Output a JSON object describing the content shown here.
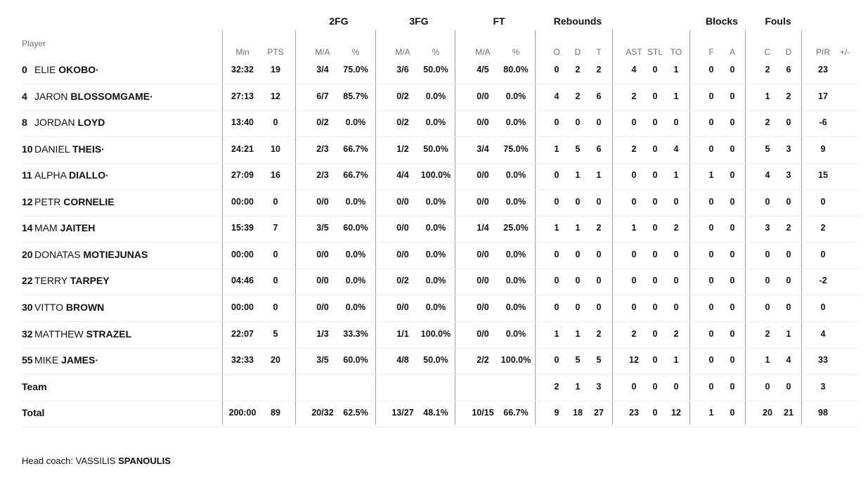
{
  "header": {
    "player_label": "Player",
    "groups": [
      {
        "key": "fg2",
        "label": "2FG"
      },
      {
        "key": "fg3",
        "label": "3FG"
      },
      {
        "key": "ft",
        "label": "FT"
      },
      {
        "key": "reb",
        "label": "Rebounds"
      },
      {
        "key": "blk",
        "label": "Blocks"
      },
      {
        "key": "fouls",
        "label": "Fouls"
      }
    ],
    "columns": [
      "Min",
      "PTS",
      "M/A",
      "%",
      "M/A",
      "%",
      "M/A",
      "%",
      "O",
      "D",
      "T",
      "AST",
      "STL",
      "TO",
      "F",
      "A",
      "C",
      "D",
      "PIR",
      "+/-"
    ]
  },
  "rows": [
    {
      "number": "0",
      "first": "ELIE",
      "last": "OKOBO·",
      "stats": [
        "32:32",
        "19",
        "3/4",
        "75.0%",
        "3/6",
        "50.0%",
        "4/5",
        "80.0%",
        "0",
        "2",
        "2",
        "4",
        "0",
        "1",
        "0",
        "0",
        "2",
        "6",
        "23",
        ""
      ]
    },
    {
      "number": "4",
      "first": "JARON",
      "last": "BLOSSOMGAME·",
      "stats": [
        "27:13",
        "12",
        "6/7",
        "85.7%",
        "0/2",
        "0.0%",
        "0/0",
        "0.0%",
        "4",
        "2",
        "6",
        "2",
        "0",
        "1",
        "0",
        "0",
        "1",
        "2",
        "17",
        ""
      ]
    },
    {
      "number": "8",
      "first": "JORDAN",
      "last": "LOYD",
      "stats": [
        "13:40",
        "0",
        "0/2",
        "0.0%",
        "0/2",
        "0.0%",
        "0/0",
        "0.0%",
        "0",
        "0",
        "0",
        "0",
        "0",
        "0",
        "0",
        "0",
        "2",
        "0",
        "-6",
        ""
      ]
    },
    {
      "number": "10",
      "first": "DANIEL",
      "last": "THEIS·",
      "stats": [
        "24:21",
        "10",
        "2/3",
        "66.7%",
        "1/2",
        "50.0%",
        "3/4",
        "75.0%",
        "1",
        "5",
        "6",
        "2",
        "0",
        "4",
        "0",
        "0",
        "5",
        "3",
        "9",
        ""
      ]
    },
    {
      "number": "11",
      "first": "ALPHA",
      "last": "DIALLO·",
      "stats": [
        "27:09",
        "16",
        "2/3",
        "66.7%",
        "4/4",
        "100.0%",
        "0/0",
        "0.0%",
        "0",
        "1",
        "1",
        "0",
        "0",
        "1",
        "1",
        "0",
        "4",
        "3",
        "15",
        ""
      ]
    },
    {
      "number": "12",
      "first": "PETR",
      "last": "CORNELIE",
      "stats": [
        "00:00",
        "0",
        "0/0",
        "0.0%",
        "0/0",
        "0.0%",
        "0/0",
        "0.0%",
        "0",
        "0",
        "0",
        "0",
        "0",
        "0",
        "0",
        "0",
        "0",
        "0",
        "0",
        ""
      ]
    },
    {
      "number": "14",
      "first": "MAM",
      "last": "JAITEH",
      "stats": [
        "15:39",
        "7",
        "3/5",
        "60.0%",
        "0/0",
        "0.0%",
        "1/4",
        "25.0%",
        "1",
        "1",
        "2",
        "1",
        "0",
        "2",
        "0",
        "0",
        "3",
        "2",
        "2",
        ""
      ]
    },
    {
      "number": "20",
      "first": "DONATAS",
      "last": "MOTIEJUNAS",
      "stats": [
        "00:00",
        "0",
        "0/0",
        "0.0%",
        "0/0",
        "0.0%",
        "0/0",
        "0.0%",
        "0",
        "0",
        "0",
        "0",
        "0",
        "0",
        "0",
        "0",
        "0",
        "0",
        "0",
        ""
      ]
    },
    {
      "number": "22",
      "first": "TERRY",
      "last": "TARPEY",
      "stats": [
        "04:46",
        "0",
        "0/0",
        "0.0%",
        "0/2",
        "0.0%",
        "0/0",
        "0.0%",
        "0",
        "0",
        "0",
        "0",
        "0",
        "0",
        "0",
        "0",
        "0",
        "0",
        "-2",
        ""
      ]
    },
    {
      "number": "30",
      "first": "VITTO",
      "last": "BROWN",
      "stats": [
        "00:00",
        "0",
        "0/0",
        "0.0%",
        "0/0",
        "0.0%",
        "0/0",
        "0.0%",
        "0",
        "0",
        "0",
        "0",
        "0",
        "0",
        "0",
        "0",
        "0",
        "0",
        "0",
        ""
      ]
    },
    {
      "number": "32",
      "first": "MATTHEW",
      "last": "STRAZEL",
      "stats": [
        "22:07",
        "5",
        "1/3",
        "33.3%",
        "1/1",
        "100.0%",
        "0/0",
        "0.0%",
        "1",
        "1",
        "2",
        "2",
        "0",
        "2",
        "0",
        "0",
        "2",
        "1",
        "4",
        ""
      ]
    },
    {
      "number": "55",
      "first": "MIKE",
      "last": "JAMES·",
      "stats": [
        "32:33",
        "20",
        "3/5",
        "60.0%",
        "4/8",
        "50.0%",
        "2/2",
        "100.0%",
        "0",
        "5",
        "5",
        "12",
        "0",
        "1",
        "0",
        "0",
        "1",
        "4",
        "33",
        ""
      ]
    },
    {
      "number": "",
      "first": "",
      "last": "Team",
      "stats": [
        "",
        "",
        "",
        "",
        "",
        "",
        "",
        "",
        "2",
        "1",
        "3",
        "0",
        "0",
        "0",
        "0",
        "0",
        "0",
        "0",
        "3",
        ""
      ]
    },
    {
      "number": "",
      "first": "",
      "last": "Total",
      "stats": [
        "200:00",
        "89",
        "20/32",
        "62.5%",
        "13/27",
        "48.1%",
        "10/15",
        "66.7%",
        "9",
        "18",
        "27",
        "23",
        "0",
        "12",
        "1",
        "0",
        "20",
        "21",
        "98",
        ""
      ]
    }
  ],
  "coach": {
    "label": "Head coach: ",
    "first": "VASSILIS",
    "last": "SPANOULIS"
  }
}
